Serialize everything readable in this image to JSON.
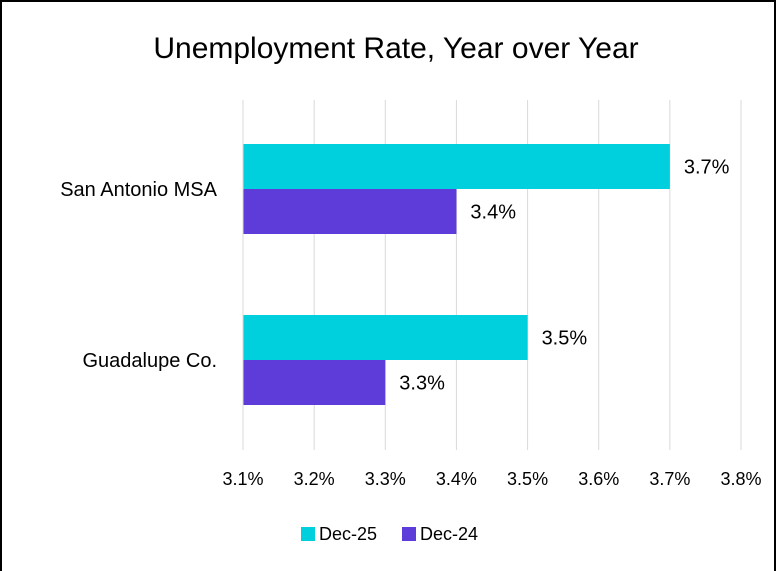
{
  "chart_data": {
    "type": "bar",
    "orientation": "horizontal",
    "title": "Unemployment Rate, Year over Year",
    "categories": [
      "San Antonio MSA",
      "Guadalupe Co."
    ],
    "series": [
      {
        "name": "Dec-25",
        "color": "#00CFDD",
        "values": [
          3.7,
          3.5
        ],
        "labels": [
          "3.7%",
          "3.5%"
        ]
      },
      {
        "name": "Dec-24",
        "color": "#5E3CD9",
        "values": [
          3.4,
          3.3
        ],
        "labels": [
          "3.4%",
          "3.3%"
        ]
      }
    ],
    "xlim": [
      3.1,
      3.8
    ],
    "xticks": [
      3.1,
      3.2,
      3.3,
      3.4,
      3.5,
      3.6,
      3.7,
      3.8
    ],
    "xtick_labels": [
      "3.1%",
      "3.2%",
      "3.3%",
      "3.4%",
      "3.5%",
      "3.6%",
      "3.7%",
      "3.8%"
    ],
    "grid": "vertical",
    "legend_position": "bottom"
  }
}
